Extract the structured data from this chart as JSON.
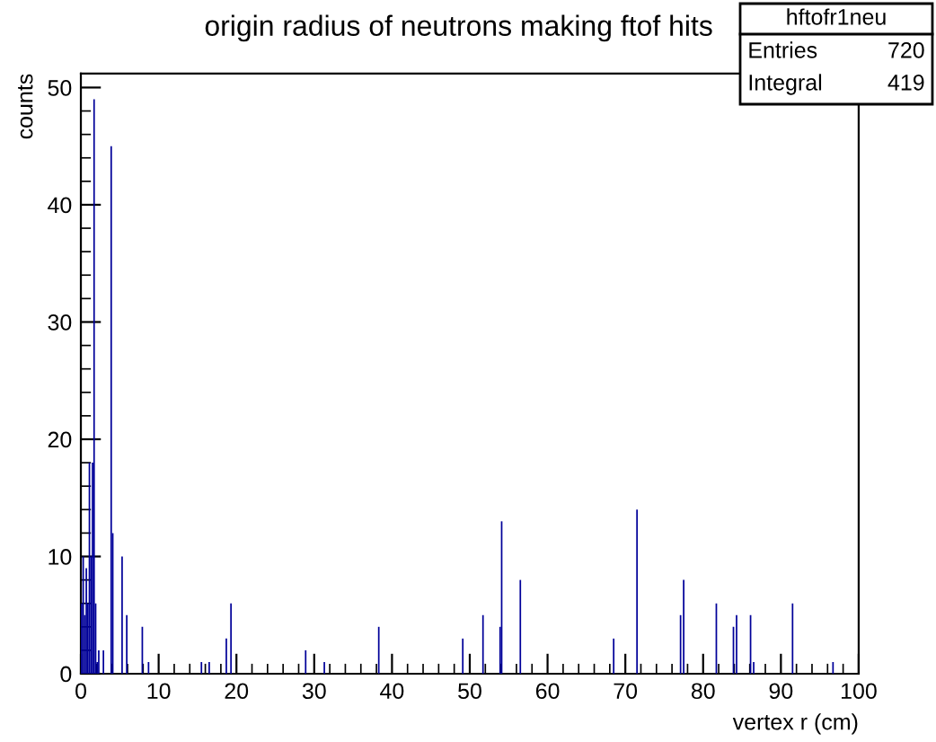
{
  "chart_data": {
    "type": "histogram",
    "title": "origin radius of neutrons making ftof hits",
    "xlabel": "vertex r (cm)",
    "ylabel": "counts",
    "bins": [
      0,
      0.2,
      0.4,
      0.6,
      0.8,
      1.0,
      1.2,
      1.4,
      1.6,
      1.8,
      2.0,
      2.2,
      2.4,
      2.8,
      3.0,
      3.8,
      4.0,
      4.2,
      5.2,
      5.4,
      5.8,
      6.0,
      7.8,
      8.0,
      8.6,
      8.8,
      15.4,
      15.6,
      16.4,
      16.6,
      18.6,
      18.8,
      19.2,
      19.4,
      28.8,
      29.0,
      31.2,
      31.4,
      38.2,
      38.4,
      49.0,
      49.2,
      51.6,
      51.8,
      53.8,
      54.0,
      54.2,
      56.4,
      56.6,
      68.4,
      68.6,
      71.4,
      71.6,
      77.0,
      77.2,
      77.4,
      77.6,
      81.6,
      81.8,
      83.8,
      84.0,
      84.2,
      84.4,
      86.0,
      86.2,
      86.4,
      86.6,
      91.4,
      91.6,
      96.6,
      96.8
    ],
    "values": [
      6,
      10,
      5,
      9,
      6,
      18,
      10,
      18,
      49,
      6,
      1,
      2,
      0,
      2,
      0,
      45,
      12,
      0,
      10,
      0,
      5,
      0,
      4,
      0,
      1,
      0,
      1,
      0,
      1,
      0,
      3,
      0,
      6,
      0,
      2,
      0,
      1,
      0,
      4,
      0,
      3,
      0,
      5,
      0,
      4,
      13,
      0,
      8,
      0,
      3,
      0,
      14,
      0,
      5,
      0,
      8,
      0,
      6,
      0,
      4,
      0,
      5,
      0,
      5,
      0,
      1,
      0,
      6,
      0,
      1
    ],
    "color": "#000099",
    "xlim": [
      0,
      100
    ],
    "ylim": [
      0,
      51.2
    ],
    "xticks": [
      0,
      10,
      20,
      30,
      40,
      50,
      60,
      70,
      80,
      90,
      100
    ],
    "yticks": [
      0,
      10,
      20,
      30,
      40,
      50
    ],
    "grid": false,
    "annotations": [
      "hftofr1neu",
      "Entries",
      "720",
      "Integral",
      "419"
    ]
  }
}
